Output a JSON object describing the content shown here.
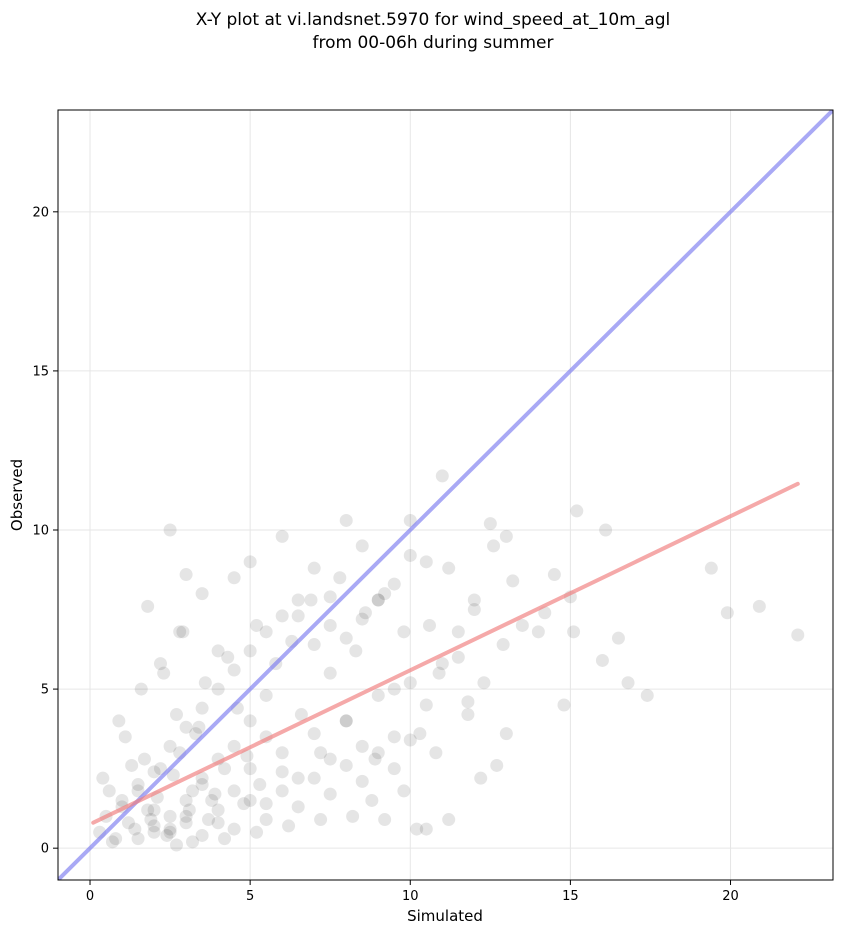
{
  "chart_data": {
    "type": "scatter",
    "title_lines": [
      "X-Y plot at vi.landsnet.5970 for wind_speed_at_10m_agl",
      "from 00-06h during summer"
    ],
    "xlabel": "Simulated",
    "ylabel": "Observed",
    "xlim": [
      -1,
      23.2
    ],
    "ylim": [
      -1,
      23.2
    ],
    "xticks": [
      "0",
      "5",
      "10",
      "15",
      "20"
    ],
    "yticks": [
      "0",
      "5",
      "10",
      "15",
      "20"
    ],
    "grid": true,
    "colors": {
      "points": "#000000",
      "identity_line": "#7b7bef",
      "fit_line": "#ef7b7b",
      "grid": "#e6e6e6"
    },
    "series": [
      {
        "kind": "points",
        "x": [
          0.3,
          0.5,
          0.8,
          1.0,
          1.2,
          1.5,
          1.8,
          2.0,
          2.2,
          2.5,
          2.8,
          3.0,
          3.2,
          3.5,
          3.8,
          4.0,
          0.4,
          0.7,
          1.1,
          1.4,
          1.7,
          2.1,
          2.4,
          2.7,
          3.1,
          3.4,
          3.7,
          4.2,
          4.5,
          4.8,
          5.0,
          5.3,
          0.6,
          0.9,
          1.3,
          1.6,
          1.9,
          2.3,
          2.6,
          2.9,
          3.3,
          3.6,
          3.9,
          4.3,
          4.6,
          4.9,
          5.2,
          5.5,
          5.8,
          6.0,
          6.3,
          6.6,
          6.9,
          7.2,
          7.5,
          7.8,
          8.0,
          8.3,
          8.6,
          8.9,
          9.2,
          9.5,
          9.8,
          10.0,
          10.3,
          10.6,
          10.9,
          11.2,
          11.5,
          11.8,
          12.0,
          12.3,
          12.6,
          12.9,
          13.2,
          13.5,
          14.0,
          14.5,
          15.0,
          15.2,
          16.0,
          16.5,
          16.8,
          17.4,
          19.4,
          19.9,
          20.9,
          22.1,
          2.5,
          3.0,
          2.8,
          1.8,
          2.2,
          3.5,
          4.0,
          4.5,
          5.0,
          5.5,
          6.0,
          6.5,
          7.0,
          7.5,
          8.0,
          8.5,
          9.0,
          9.5,
          10.0,
          10.5,
          11.0,
          11.5,
          12.0,
          12.5,
          13.0,
          2.0,
          2.5,
          3.0,
          3.5,
          4.0,
          4.5,
          5.0,
          5.5,
          6.0,
          6.5,
          7.0,
          7.5,
          8.0,
          8.5,
          9.0,
          9.5,
          10.0,
          10.5,
          11.0,
          1.5,
          2.0,
          2.5,
          3.0,
          3.5,
          4.0,
          4.5,
          5.0,
          5.5,
          6.0,
          6.5,
          7.0,
          7.5,
          8.0,
          8.5,
          9.0,
          9.5,
          10.0,
          1.0,
          1.5,
          2.0,
          2.5,
          3.0,
          3.5,
          4.0,
          4.5,
          5.0,
          5.5,
          6.0,
          6.5,
          7.0,
          7.5,
          8.0,
          8.5,
          9.0,
          2.7,
          3.2,
          4.2,
          5.2,
          6.2,
          7.2,
          8.2,
          9.2,
          10.2,
          11.2,
          12.2,
          10.5,
          10.8,
          9.8,
          8.8,
          12.7,
          11.8,
          13.0,
          14.8,
          15.1,
          16.1,
          14.2
        ],
        "y": [
          0.5,
          1.0,
          0.3,
          1.5,
          0.8,
          2.0,
          1.2,
          0.5,
          2.5,
          1.0,
          3.0,
          0.8,
          1.8,
          2.2,
          1.5,
          2.8,
          2.2,
          0.2,
          3.5,
          0.6,
          2.8,
          1.6,
          0.4,
          4.2,
          1.2,
          3.8,
          0.9,
          2.5,
          3.2,
          1.4,
          4.0,
          2.0,
          1.8,
          4.0,
          2.6,
          5.0,
          0.9,
          5.5,
          2.3,
          6.8,
          3.6,
          5.2,
          1.7,
          6.0,
          4.4,
          2.9,
          7.0,
          3.5,
          5.8,
          2.4,
          6.5,
          4.2,
          7.8,
          3.0,
          5.5,
          8.5,
          4.0,
          6.2,
          7.4,
          2.8,
          8.0,
          5.0,
          6.8,
          9.2,
          3.6,
          7.0,
          5.5,
          8.8,
          6.0,
          4.6,
          7.8,
          5.2,
          9.5,
          6.4,
          8.4,
          7.0,
          6.8,
          8.6,
          7.9,
          10.6,
          5.9,
          6.6,
          5.2,
          4.8,
          8.8,
          7.4,
          7.6,
          6.7,
          10.0,
          8.6,
          6.8,
          7.6,
          5.8,
          8.0,
          6.2,
          8.5,
          9.0,
          4.8,
          9.8,
          7.3,
          8.8,
          7.9,
          10.3,
          9.5,
          7.8,
          8.3,
          10.3,
          9.0,
          11.7,
          6.8,
          7.5,
          10.2,
          9.8,
          1.2,
          0.6,
          1.5,
          2.0,
          0.8,
          1.8,
          2.5,
          1.4,
          3.0,
          2.2,
          3.6,
          2.8,
          4.0,
          3.2,
          4.8,
          3.5,
          5.2,
          4.5,
          5.8,
          0.3,
          0.7,
          0.5,
          1.0,
          0.4,
          1.2,
          0.6,
          1.5,
          0.9,
          1.8,
          1.3,
          2.2,
          1.7,
          2.6,
          2.1,
          3.0,
          2.5,
          3.4,
          1.3,
          1.8,
          2.4,
          3.2,
          3.8,
          4.4,
          5.0,
          5.6,
          6.2,
          6.8,
          7.3,
          7.8,
          6.4,
          7.0,
          6.6,
          7.2,
          7.8,
          0.1,
          0.2,
          0.3,
          0.5,
          0.7,
          0.9,
          1.0,
          0.9,
          0.6,
          0.9,
          2.2,
          0.6,
          3.0,
          1.8,
          1.5,
          2.6,
          4.2,
          3.6,
          4.5,
          6.8,
          10.0,
          7.4
        ]
      },
      {
        "kind": "line",
        "name": "",
        "x": [
          -1,
          23.2
        ],
        "y": [
          -1,
          23.2
        ]
      },
      {
        "kind": "line",
        "name": "",
        "x": [
          0.1,
          22.1
        ],
        "y": [
          0.8,
          11.45
        ]
      }
    ]
  }
}
